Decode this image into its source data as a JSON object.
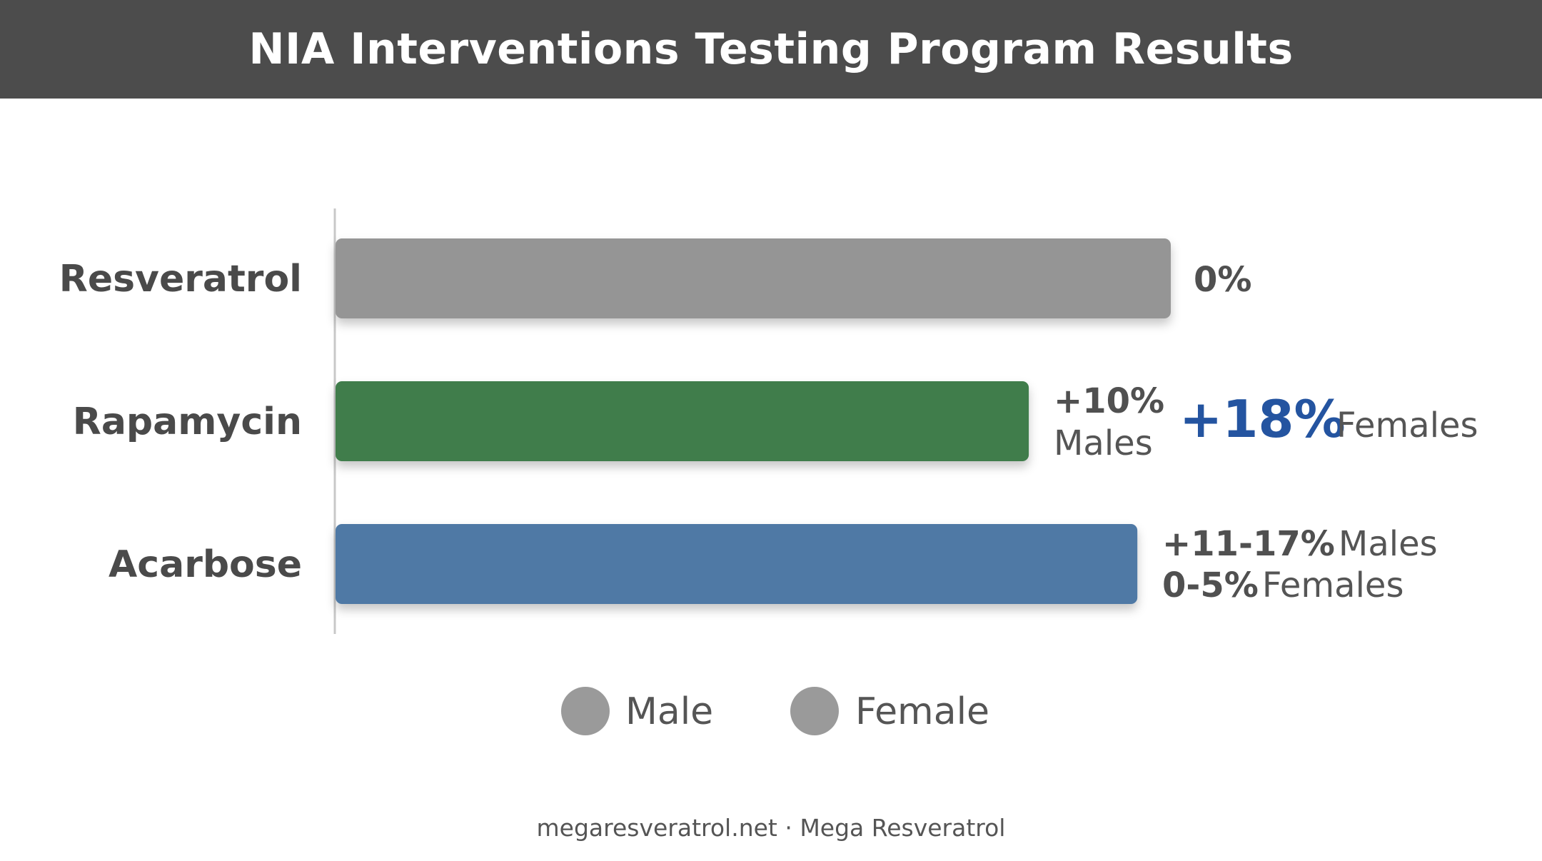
{
  "title": "NIA Interventions Testing Program Results",
  "footer": "megaresveratrol.net · Mega Resveratrol",
  "chart_data": {
    "type": "bar",
    "orientation": "horizontal",
    "title": "NIA Interventions Testing Program Results",
    "categories": [
      "Resveratrol",
      "Rapamycin",
      "Acarbose"
    ],
    "bar_colors": [
      "#959595",
      "#3f7d4b",
      "#5079a5"
    ],
    "values": [
      100,
      83,
      96
    ],
    "annotations": [
      {
        "category": "Resveratrol",
        "parts": [
          {
            "text": "0%",
            "style": "bold"
          }
        ]
      },
      {
        "category": "Rapamycin",
        "males_value": "+10%",
        "males_label": "Males",
        "females_value": "+18%",
        "females_label": "Females"
      },
      {
        "category": "Acarbose",
        "line1_value": "+11-17%",
        "line1_label": "Males",
        "line2_value": "0-5%",
        "line2_label": "Females"
      }
    ],
    "legend": {
      "placement": "bottom",
      "items": [
        {
          "label": "Male",
          "color": "#9a9a9a"
        },
        {
          "label": "Female",
          "color": "#9a9a9a"
        }
      ]
    },
    "grid": false,
    "accent_color": "#2454a0"
  }
}
